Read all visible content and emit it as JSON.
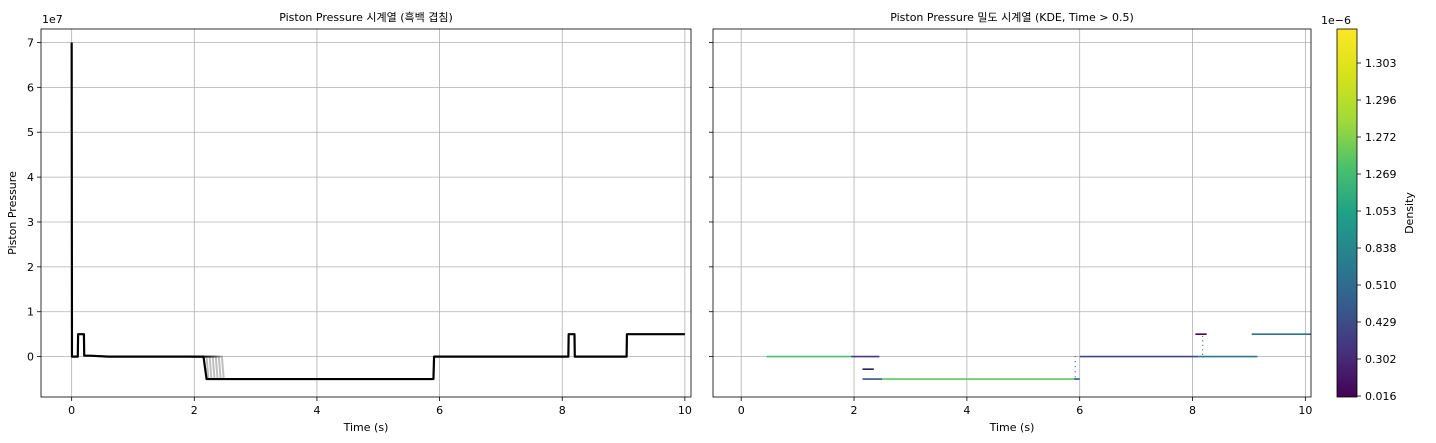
{
  "chart_data": [
    {
      "type": "line",
      "title": "Piston Pressure 시계열 (흑백 겹침)",
      "xlabel": "Time (s)",
      "ylabel": "Piston Pressure",
      "y_offset_label": "1e7",
      "xlim": [
        -0.5,
        10.1
      ],
      "ylim": [
        -0.9,
        7.3
      ],
      "y_scale_factor": 10000000,
      "grid": true,
      "x_ticks": [
        "0",
        "2",
        "4",
        "6",
        "8",
        "10"
      ],
      "y_ticks": [
        "0",
        "1",
        "2",
        "3",
        "4",
        "5",
        "6",
        "7"
      ],
      "series": [
        {
          "color": "#000000",
          "x": [
            0,
            0.005,
            0.01,
            0.1,
            0.105,
            0.2,
            0.205,
            0.3,
            0.6,
            1.0,
            1.5,
            1.95,
            2.15,
            2.2,
            2.5,
            3.0,
            4.0,
            5.0,
            5.9,
            5.91,
            6.5,
            7.0,
            8.0,
            8.1,
            8.105,
            8.2,
            8.205,
            8.3,
            8.7,
            9.05,
            9.055,
            9.5,
            10.0
          ],
          "y": [
            7.0,
            0.0,
            0.0,
            0.0,
            0.5,
            0.5,
            0.02,
            0.02,
            0.0,
            0.0,
            0.0,
            0.0,
            0.0,
            -0.5,
            -0.5,
            -0.5,
            -0.5,
            -0.5,
            -0.5,
            0.0,
            0.0,
            0.0,
            0.0,
            0.0,
            0.5,
            0.5,
            0.0,
            0.0,
            0.0,
            0.0,
            0.5,
            0.5,
            0.5
          ]
        }
      ],
      "overlap_drop_times": [
        2.2,
        2.25,
        2.3,
        2.35,
        2.4,
        2.45
      ]
    },
    {
      "type": "heatmap",
      "title": "Piston Pressure 밀도 시계열 (KDE, Time > 0.5)",
      "xlabel": "Time (s)",
      "xlim": [
        -0.5,
        10.1
      ],
      "ylim": [
        -0.9,
        7.3
      ],
      "grid": true,
      "x_ticks": [
        "0",
        "2",
        "4",
        "6",
        "8",
        "10"
      ],
      "colormap": "viridis",
      "colorbar_label": "Density",
      "colorbar_offset_label": "1e−6",
      "colorbar_ticks": [
        "0.016",
        "0.302",
        "0.429",
        "0.510",
        "0.838",
        "1.053",
        "1.269",
        "1.272",
        "1.296",
        "1.303"
      ],
      "segments": [
        {
          "x0": 0.45,
          "x1": 1.95,
          "y": 0.0,
          "color": "#46c06f"
        },
        {
          "x0": 1.95,
          "x1": 2.45,
          "y": 0.0,
          "color": "#443983"
        },
        {
          "x0": 2.15,
          "x1": 2.35,
          "y": -0.28,
          "color": "#2d1a5e"
        },
        {
          "x0": 2.15,
          "x1": 2.5,
          "y": -0.5,
          "color": "#3b528b"
        },
        {
          "x0": 2.5,
          "x1": 5.9,
          "y": -0.5,
          "color": "#5ec962"
        },
        {
          "x0": 5.9,
          "x1": 6.0,
          "y": -0.5,
          "color": "#3b528b"
        },
        {
          "x0": 6.0,
          "x1": 8.1,
          "y": 0.0,
          "color": "#404688"
        },
        {
          "x0": 8.1,
          "x1": 9.15,
          "y": 0.0,
          "color": "#2a788e"
        },
        {
          "x0": 8.05,
          "x1": 8.25,
          "y": 0.5,
          "color": "#440154"
        },
        {
          "x0": 9.05,
          "x1": 10.1,
          "y": 0.5,
          "color": "#2c728e"
        }
      ]
    }
  ]
}
